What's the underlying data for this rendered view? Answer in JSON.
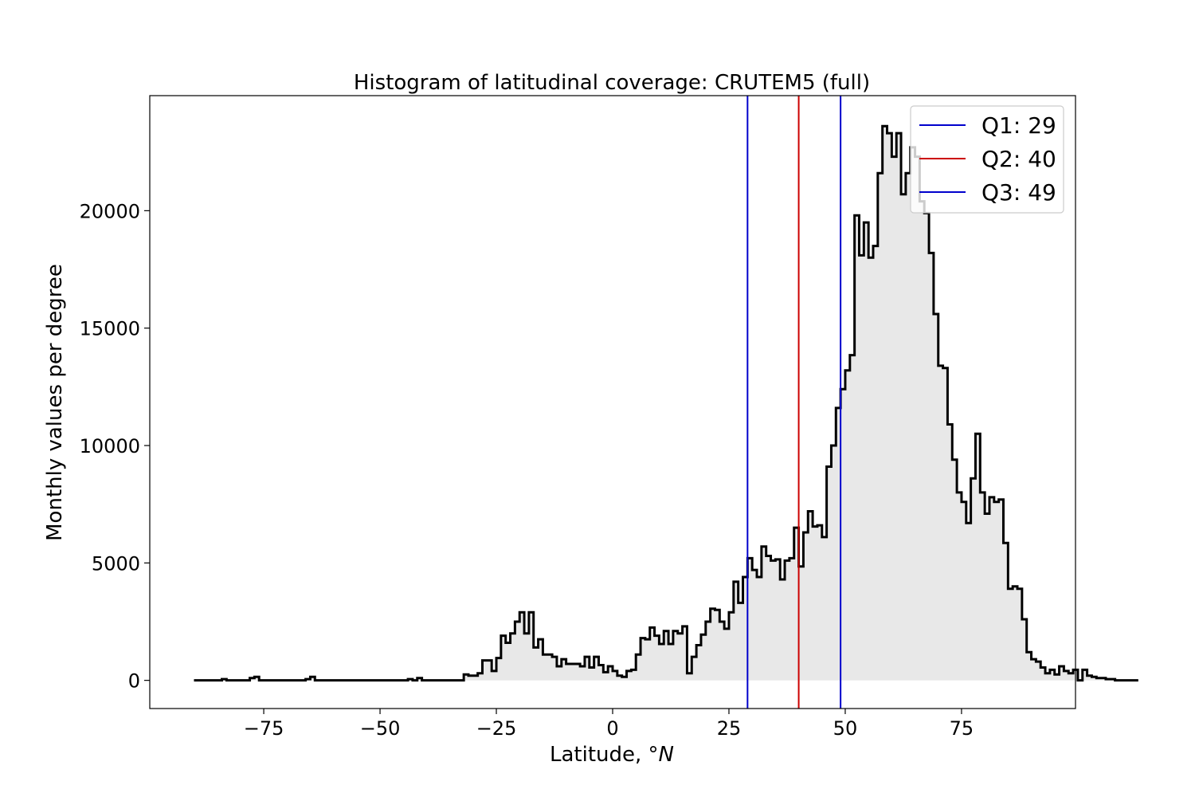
{
  "chart_data": {
    "type": "histogram",
    "title": "Histogram of latitudinal coverage: CRUTEM5 (full)",
    "xlabel_prefix": "Latitude, °",
    "xlabel_unit": "N",
    "ylabel": "Monthly values per degree",
    "xlim": [
      -99.5,
      99.5
    ],
    "ylim": [
      -1200,
      24900
    ],
    "x_ticks": [
      -75,
      -50,
      -25,
      0,
      25,
      50,
      75
    ],
    "x_tick_labels": [
      "−75",
      "−50",
      "−25",
      "0",
      "25",
      "50",
      "75"
    ],
    "y_ticks": [
      0,
      5000,
      10000,
      15000,
      20000
    ],
    "y_tick_labels": [
      "0",
      "5000",
      "10000",
      "15000",
      "20000"
    ],
    "bin_edges_range": [
      -90,
      90
    ],
    "bin_width": 1,
    "series": [
      {
        "style": "step-filled",
        "line_color": "#000000",
        "fill_color": "#e8e8e8",
        "values": [
          0,
          0,
          0,
          0,
          0,
          0,
          50,
          0,
          0,
          0,
          0,
          0,
          100,
          150,
          0,
          0,
          0,
          0,
          0,
          0,
          0,
          0,
          0,
          0,
          50,
          150,
          0,
          0,
          0,
          0,
          0,
          0,
          0,
          0,
          0,
          0,
          0,
          0,
          0,
          0,
          0,
          0,
          0,
          0,
          0,
          0,
          50,
          0,
          100,
          0,
          0,
          0,
          0,
          0,
          0,
          0,
          0,
          0,
          250,
          200,
          200,
          300,
          850,
          850,
          400,
          950,
          1900,
          1600,
          2000,
          2500,
          2900,
          2000,
          2900,
          1400,
          1750,
          1100,
          1100,
          1000,
          600,
          900,
          700,
          700,
          700,
          600,
          1000,
          550,
          1000,
          650,
          350,
          600,
          400,
          200,
          150,
          400,
          450,
          1100,
          1800,
          1750,
          2250,
          1900,
          1550,
          2100,
          1550,
          2100,
          2000,
          2300,
          300,
          1000,
          1500,
          1950,
          2500,
          3050,
          3000,
          2500,
          2200,
          2900,
          4200,
          3300,
          4400,
          5200,
          4700,
          4400,
          5700,
          5300,
          5100,
          5150,
          4300,
          5100,
          5200,
          6500,
          4850,
          6300,
          7200,
          6550,
          6600,
          6100,
          9100,
          10000,
          11600,
          12400,
          13200,
          13850,
          19800,
          18100,
          19500,
          18000,
          18500,
          21600,
          23600,
          23300,
          22300,
          23300,
          20700,
          21600,
          22700,
          22300,
          20400,
          19900,
          18200,
          15600,
          13400,
          13300,
          10900,
          9400,
          8000,
          7600,
          6700,
          8600,
          10500,
          8000,
          7100,
          7800,
          7600,
          7700,
          5850,
          3900,
          4000,
          3900,
          2600,
          1200,
          900,
          800,
          550,
          300,
          450,
          250,
          600,
          400,
          300,
          450,
          0,
          450,
          200,
          150,
          100,
          100,
          50,
          50,
          0,
          0,
          0,
          0,
          0
        ]
      }
    ],
    "quartiles": [
      {
        "name": "Q1: 29",
        "x": 29,
        "color": "#0000cc"
      },
      {
        "name": "Q2: 40",
        "x": 40,
        "color": "#cc0000"
      },
      {
        "name": "Q3: 49",
        "x": 49,
        "color": "#0000cc"
      }
    ],
    "legend_position": "top-right",
    "grid": false
  }
}
